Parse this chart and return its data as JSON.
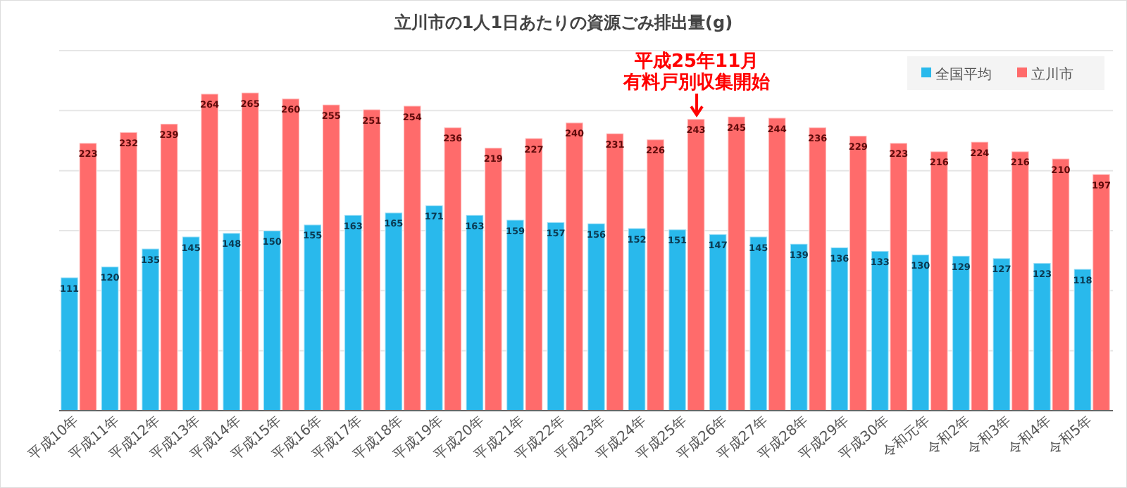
{
  "chart_data": {
    "type": "bar",
    "title": "立川市の1人1日あたりの資源ごみ排出量(g)",
    "categories": [
      "平成10年",
      "平成11年",
      "平成12年",
      "平成13年",
      "平成14年",
      "平成15年",
      "平成16年",
      "平成17年",
      "平成18年",
      "平成19年",
      "平成20年",
      "平成21年",
      "平成22年",
      "平成23年",
      "平成24年",
      "平成25年",
      "平成26年",
      "平成27年",
      "平成28年",
      "平成29年",
      "平成30年",
      "令和元年",
      "令和2年",
      "令和3年",
      "令和4年",
      "令和5年"
    ],
    "series": [
      {
        "name": "全国平均",
        "color": "#29b9ec",
        "values": [
          111,
          120,
          135,
          145,
          148,
          150,
          155,
          163,
          165,
          171,
          163,
          159,
          157,
          156,
          152,
          151,
          147,
          145,
          139,
          136,
          133,
          130,
          129,
          127,
          123,
          118
        ]
      },
      {
        "name": "立川市",
        "color": "#ff6b6b",
        "values": [
          223,
          232,
          239,
          264,
          265,
          260,
          255,
          251,
          254,
          236,
          219,
          227,
          240,
          231,
          226,
          243,
          245,
          244,
          236,
          229,
          223,
          216,
          224,
          216,
          210,
          197
        ]
      }
    ],
    "ylim": [
      0,
      300
    ],
    "yticks": [
      {
        "value": 0,
        "label": null
      },
      {
        "value": 50,
        "label": null
      },
      {
        "value": 100,
        "label": null
      },
      {
        "value": 150,
        "label": null
      },
      {
        "value": 200,
        "label": null
      },
      {
        "value": 250,
        "label": null
      },
      {
        "value": 300,
        "label": null
      }
    ],
    "grid": "y",
    "legend": "top right",
    "data_labels": true,
    "annotations": [
      "平成25年11月",
      {
        "text": "有料戸別収集開始",
        "x": "平成25年",
        "y": 243
      }
    ]
  }
}
